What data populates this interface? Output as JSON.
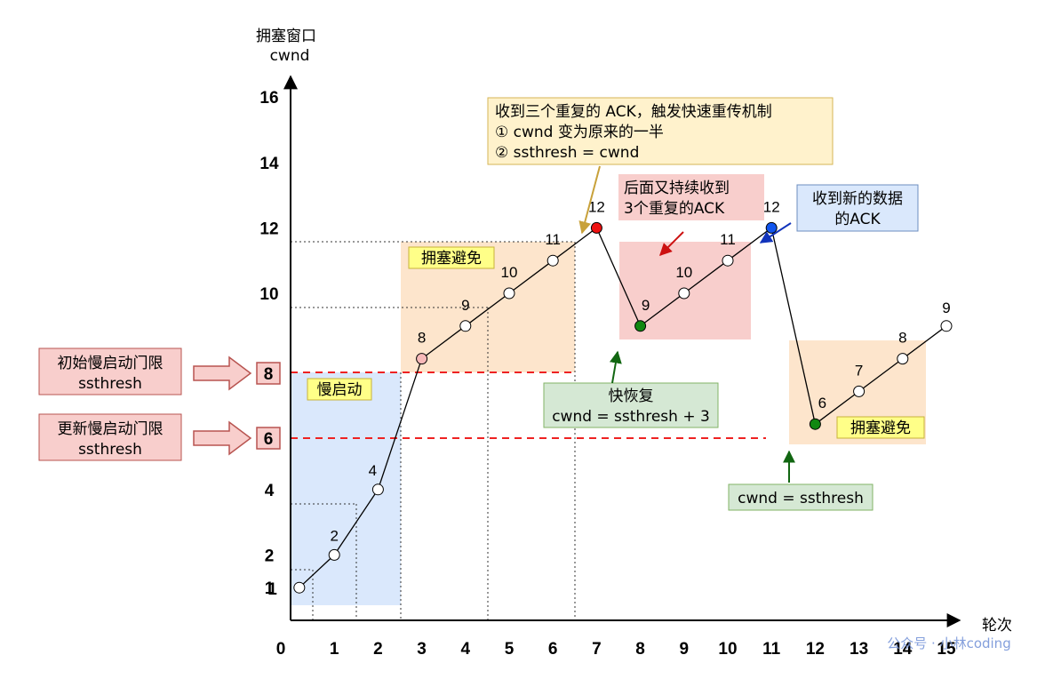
{
  "chart_data": {
    "type": "line",
    "title": "",
    "ylabel_line1": "拥塞窗口",
    "ylabel_line2": "cwnd",
    "xlabel": "轮次",
    "xticks": [
      "0",
      "1",
      "2",
      "3",
      "4",
      "5",
      "6",
      "7",
      "8",
      "9",
      "10",
      "11",
      "12",
      "13",
      "14",
      "15"
    ],
    "yticks": [
      "1",
      "2",
      "4",
      "6",
      "8",
      "10",
      "12",
      "14",
      "16"
    ],
    "xlim": [
      0,
      15.5
    ],
    "ylim": [
      0,
      17
    ],
    "series": [
      {
        "values": [
          {
            "x": 0.2,
            "y": 1,
            "label": "1",
            "color": "#ffffff"
          },
          {
            "x": 1,
            "y": 2,
            "label": "2",
            "color": "#ffffff"
          },
          {
            "x": 2,
            "y": 4,
            "label": "4",
            "color": "#ffffff"
          },
          {
            "x": 3,
            "y": 8,
            "label": "8",
            "color": "#f7b9b9"
          },
          {
            "x": 4,
            "y": 9,
            "label": "9",
            "color": "#ffffff"
          },
          {
            "x": 5,
            "y": 10,
            "label": "10",
            "color": "#ffffff"
          },
          {
            "x": 6,
            "y": 11,
            "label": "11",
            "color": "#ffffff"
          },
          {
            "x": 7,
            "y": 12,
            "label": "12",
            "color": "#ee1111"
          },
          {
            "x": 8,
            "y": 9,
            "label": "9",
            "color": "#118811"
          },
          {
            "x": 9,
            "y": 10,
            "label": "10",
            "color": "#ffffff"
          },
          {
            "x": 10,
            "y": 11,
            "label": "11",
            "color": "#ffffff"
          },
          {
            "x": 11,
            "y": 12,
            "label": "12",
            "color": "#1155ee"
          },
          {
            "x": 12,
            "y": 6,
            "label": "6",
            "color": "#118811"
          },
          {
            "x": 13,
            "y": 7,
            "label": "7",
            "color": "#ffffff"
          },
          {
            "x": 14,
            "y": 8,
            "label": "8",
            "color": "#ffffff"
          },
          {
            "x": 15,
            "y": 9,
            "label": "9",
            "color": "#ffffff"
          }
        ]
      }
    ],
    "thresholds": [
      {
        "y": 8,
        "label": "8",
        "side_label": [
          "初始慢启动门限",
          "ssthresh"
        ]
      },
      {
        "y": 6,
        "label": "6",
        "side_label": [
          "更新慢启动门限",
          "ssthresh"
        ]
      }
    ],
    "phase_labels": {
      "slow_start": "慢启动",
      "avoid1": "拥塞避免",
      "avoid2": "拥塞避免"
    },
    "annotations": {
      "triple_ack": [
        "收到三个重复的 ACK，触发快速重传机制",
        "① cwnd 变为原来的一半",
        "② ssthresh = cwnd"
      ],
      "continue_dup": [
        "后面又持续收到",
        "3个重复的ACK"
      ],
      "new_ack": [
        "收到新的数据",
        "的ACK"
      ],
      "fast_recovery": [
        "快恢复",
        "cwnd = ssthresh + 3"
      ],
      "cwnd_eq": "cwnd = ssthresh"
    },
    "watermark": "公众号 · 小林coding",
    "grid": false,
    "colors": {
      "slow_start_bg": "#dae8fc",
      "avoid_bg": "#fde5cc",
      "recovery_bg": "#f8cecc",
      "yellow_note": "#fff2cc",
      "green_note": "#d5e8d4",
      "blue_note": "#dae8fc",
      "red_dash": "#ee2222",
      "label_yellow": "#ffff88"
    }
  }
}
